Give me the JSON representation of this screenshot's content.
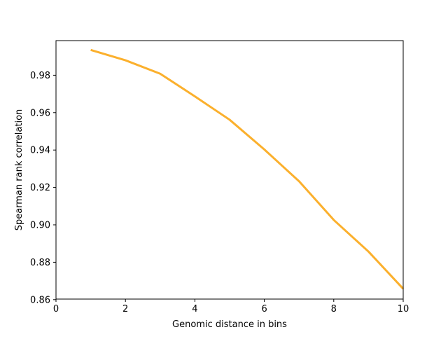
{
  "chart_data": {
    "type": "line",
    "title": "",
    "xlabel": "Genomic distance in bins",
    "ylabel": "Spearman rank correlation",
    "xlim": [
      0,
      10
    ],
    "ylim": [
      0.8603,
      0.9985
    ],
    "x_ticks": [
      0,
      2,
      4,
      6,
      8,
      10
    ],
    "x_tick_labels": [
      "0",
      "2",
      "4",
      "6",
      "8",
      "10"
    ],
    "y_ticks": [
      0.86,
      0.88,
      0.9,
      0.92,
      0.94,
      0.96,
      0.98
    ],
    "y_tick_labels": [
      "0.86",
      "0.88",
      "0.90",
      "0.92",
      "0.94",
      "0.96",
      "0.98"
    ],
    "grid": false,
    "legend": "none",
    "series": [
      {
        "color": "#fbb02d",
        "x": [
          1,
          2,
          3,
          4,
          5,
          6,
          7,
          8,
          9,
          10
        ],
        "y": [
          0.9935,
          0.988,
          0.9808,
          0.9687,
          0.9562,
          0.9403,
          0.9233,
          0.9026,
          0.8857,
          0.8658
        ]
      }
    ]
  }
}
